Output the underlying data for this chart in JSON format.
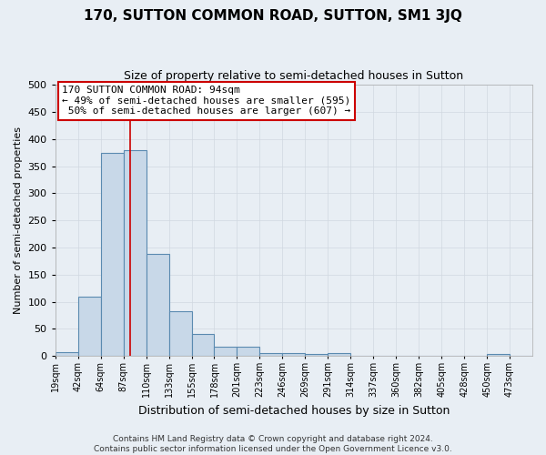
{
  "title": "170, SUTTON COMMON ROAD, SUTTON, SM1 3JQ",
  "subtitle": "Size of property relative to semi-detached houses in Sutton",
  "xlabel": "Distribution of semi-detached houses by size in Sutton",
  "ylabel": "Number of semi-detached properties",
  "bin_labels": [
    "19sqm",
    "42sqm",
    "64sqm",
    "87sqm",
    "110sqm",
    "133sqm",
    "155sqm",
    "178sqm",
    "201sqm",
    "223sqm",
    "246sqm",
    "269sqm",
    "291sqm",
    "314sqm",
    "337sqm",
    "360sqm",
    "382sqm",
    "405sqm",
    "428sqm",
    "450sqm",
    "473sqm"
  ],
  "bar_heights": [
    7,
    110,
    375,
    380,
    188,
    83,
    40,
    17,
    18,
    6,
    5,
    3,
    5,
    0,
    0,
    0,
    0,
    0,
    0,
    4,
    0
  ],
  "bar_color": "#c8d8e8",
  "bar_edgecolor": "#5a8ab0",
  "bar_linewidth": 0.8,
  "grid_color": "#d0d8e0",
  "background_color": "#e8eef4",
  "red_line_x": 3.304,
  "ylim": [
    0,
    500
  ],
  "annotation_line1": "170 SUTTON COMMON ROAD: 94sqm",
  "annotation_line2": "← 49% of semi-detached houses are smaller (595)",
  "annotation_line3": " 50% of semi-detached houses are larger (607) →",
  "annotation_box_facecolor": "white",
  "annotation_box_edgecolor": "#cc0000",
  "footer_line1": "Contains HM Land Registry data © Crown copyright and database right 2024.",
  "footer_line2": "Contains public sector information licensed under the Open Government Licence v3.0.",
  "title_fontsize": 11,
  "subtitle_fontsize": 9,
  "xlabel_fontsize": 9,
  "ylabel_fontsize": 8,
  "tick_fontsize": 7,
  "annotation_fontsize": 8,
  "footer_fontsize": 6.5
}
